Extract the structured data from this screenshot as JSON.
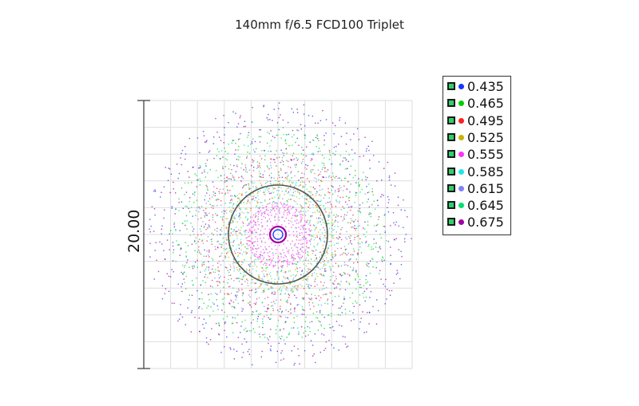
{
  "chart_data": {
    "type": "scatter",
    "title": "140mm f/6.5 FCD100 Triplet",
    "scale_label": "20.00",
    "grid": true,
    "legend_position": "top-right",
    "series": [
      {
        "name": "0.435",
        "color": "#1a33ff"
      },
      {
        "name": "0.465",
        "color": "#00d000"
      },
      {
        "name": "0.495",
        "color": "#ff2020"
      },
      {
        "name": "0.525",
        "color": "#c8b400"
      },
      {
        "name": "0.555",
        "color": "#ff33ff"
      },
      {
        "name": "0.585",
        "color": "#22e6e6"
      },
      {
        "name": "0.615",
        "color": "#8080ff"
      },
      {
        "name": "0.645",
        "color": "#00e070"
      },
      {
        "name": "0.675",
        "color": "#a000a0"
      }
    ]
  }
}
